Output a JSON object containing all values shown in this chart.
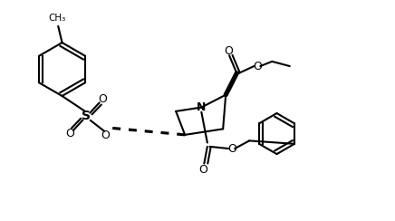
{
  "background_color": "#ffffff",
  "line_color": "#000000",
  "line_width": 1.5,
  "figsize": [
    4.36,
    2.44
  ],
  "dpi": 100,
  "xlim": [
    0,
    10
  ],
  "ylim": [
    0,
    5.6
  ]
}
